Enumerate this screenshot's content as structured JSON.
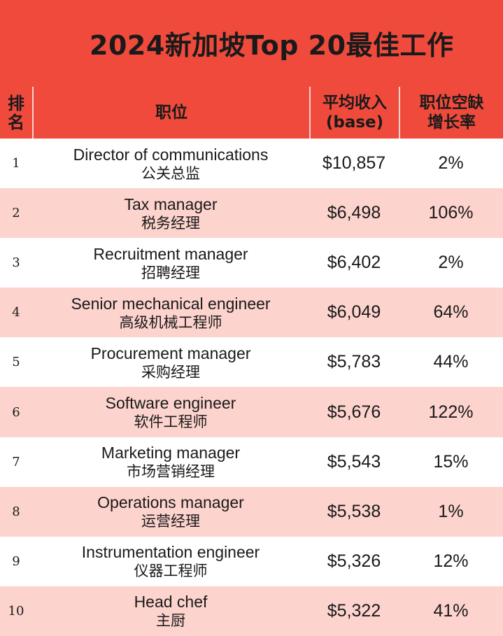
{
  "title": "2024新加坡Top 20最佳工作",
  "header": {
    "rank": "排名",
    "position": "职位",
    "salary_line1": "平均收入",
    "salary_line2": "(base)",
    "growth_line1": "职位空缺",
    "growth_line2": "增长率"
  },
  "rows": [
    {
      "rank": "1",
      "en": "Director of communications",
      "zh": "公关总监",
      "salary": "$10,857",
      "growth": "2%"
    },
    {
      "rank": "2",
      "en": "Tax manager",
      "zh": "税务经理",
      "salary": "$6,498",
      "growth": "106%"
    },
    {
      "rank": "3",
      "en": "Recruitment manager",
      "zh": "招聘经理",
      "salary": "$6,402",
      "growth": "2%"
    },
    {
      "rank": "4",
      "en": "Senior mechanical engineer",
      "zh": "高级机械工程师",
      "salary": "$6,049",
      "growth": "64%"
    },
    {
      "rank": "5",
      "en": "Procurement manager",
      "zh": "采购经理",
      "salary": "$5,783",
      "growth": "44%"
    },
    {
      "rank": "6",
      "en": "Software engineer",
      "zh": "软件工程师",
      "salary": "$5,676",
      "growth": "122%"
    },
    {
      "rank": "7",
      "en": "Marketing manager",
      "zh": "市场营销经理",
      "salary": "$5,543",
      "growth": "15%"
    },
    {
      "rank": "8",
      "en": "Operations manager",
      "zh": "运营经理",
      "salary": "$5,538",
      "growth": "1%"
    },
    {
      "rank": "9",
      "en": "Instrumentation engineer",
      "zh": "仪器工程师",
      "salary": "$5,326",
      "growth": "12%"
    },
    {
      "rank": "10",
      "en": "Head chef",
      "zh": "主厨",
      "salary": "$5,322",
      "growth": "41%"
    }
  ]
}
